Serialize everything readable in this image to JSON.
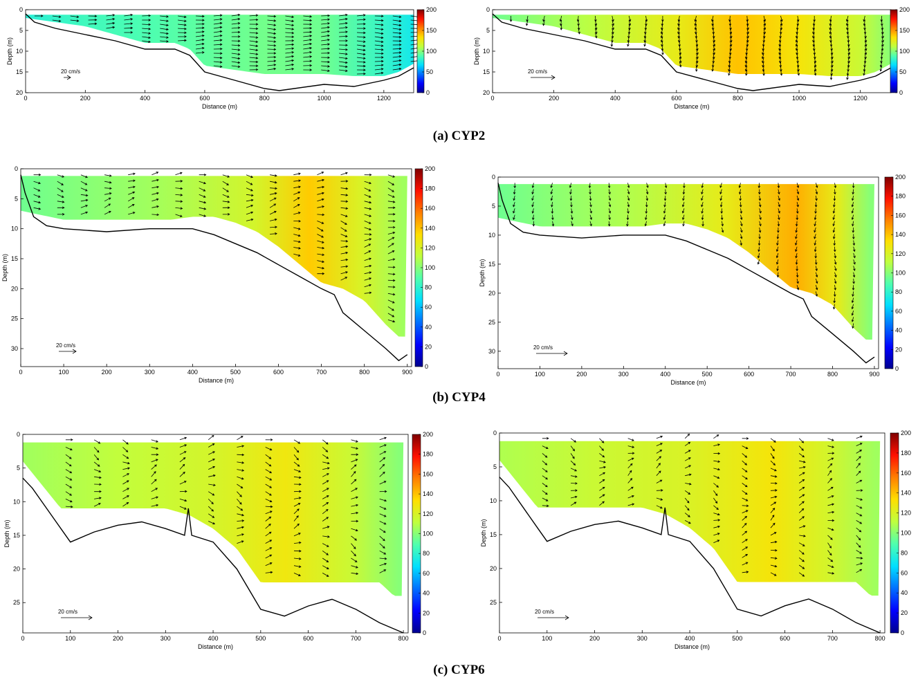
{
  "colorbar_colors": [
    "#00008f",
    "#0000ff",
    "#006fff",
    "#00dfff",
    "#4fffaf",
    "#bfff3f",
    "#ffdf00",
    "#ff7f00",
    "#ff1000",
    "#7f0000"
  ],
  "captions": {
    "a": "(a) CYP2",
    "b": "(b) CYP4",
    "c": "(c) CYP6"
  },
  "chart_data": [
    {
      "id": "cyp2-left",
      "type": "heatmap",
      "xlabel": "Distance (m)",
      "ylabel": "Depth (m)",
      "xlim": [
        0,
        1300
      ],
      "ylim": [
        20,
        0
      ],
      "y_reversed": true,
      "xticks": [
        0,
        200,
        400,
        600,
        800,
        1000,
        1200
      ],
      "yticks": [
        0,
        5,
        10,
        15,
        20
      ],
      "colorbar": {
        "range": [
          0,
          200
        ],
        "ticks": [
          0,
          50,
          100,
          150,
          200
        ]
      },
      "scale_label": "20 cm/s",
      "scale_cm_s": 20,
      "bed_x": [
        0,
        30,
        100,
        200,
        300,
        400,
        500,
        550,
        600,
        700,
        800,
        850,
        900,
        1000,
        1100,
        1200,
        1250,
        1300
      ],
      "bed_depth": [
        1,
        3,
        4.5,
        6,
        7.5,
        9.5,
        9.5,
        11,
        15,
        17,
        19,
        19.5,
        19,
        18,
        18.5,
        17,
        16,
        14
      ],
      "bottom_x": [
        0,
        100,
        200,
        300,
        400,
        500,
        550,
        600,
        700,
        800,
        900,
        1000,
        1100,
        1200,
        1250,
        1300
      ],
      "bottom_depth": [
        2,
        3,
        4,
        6,
        8,
        8,
        9.5,
        13.5,
        14.5,
        15.5,
        15.5,
        15.5,
        16,
        16,
        15,
        13
      ],
      "field": [
        {
          "x": 0,
          "v": 78
        },
        {
          "x": 200,
          "v": 85
        },
        {
          "x": 400,
          "v": 88
        },
        {
          "x": 600,
          "v": 92
        },
        {
          "x": 800,
          "v": 96
        },
        {
          "x": 1000,
          "v": 95
        },
        {
          "x": 1200,
          "v": 82
        },
        {
          "x": 1300,
          "v": 72
        }
      ],
      "arrows": {
        "style": "horizontal",
        "x_start": 30,
        "x_end": 1290,
        "x_step": 60,
        "z_top": 1.5,
        "z_step": 1,
        "length": 12,
        "wiggle": 0.15
      }
    },
    {
      "id": "cyp2-right",
      "type": "heatmap",
      "xlabel": "Distance (m)",
      "ylabel": "Depth (m)",
      "xlim": [
        0,
        1300
      ],
      "ylim": [
        20,
        0
      ],
      "y_reversed": true,
      "xticks": [
        0,
        200,
        400,
        600,
        800,
        1000,
        1200
      ],
      "yticks": [
        0,
        5,
        10,
        15,
        20
      ],
      "colorbar": {
        "range": [
          0,
          200
        ],
        "ticks": [
          0,
          50,
          100,
          150,
          200
        ]
      },
      "scale_label": "20 cm/s",
      "scale_cm_s": 20,
      "bed_x": [
        0,
        30,
        100,
        200,
        300,
        400,
        500,
        550,
        600,
        700,
        800,
        850,
        900,
        1000,
        1100,
        1200,
        1250,
        1300
      ],
      "bed_depth": [
        1,
        3,
        4.5,
        6,
        7.5,
        9.5,
        9.5,
        11,
        15,
        17,
        19,
        19.5,
        19,
        18,
        18.5,
        17,
        16,
        14
      ],
      "bottom_x": [
        0,
        100,
        200,
        300,
        400,
        500,
        550,
        600,
        700,
        800,
        900,
        1000,
        1100,
        1200,
        1250,
        1300
      ],
      "bottom_depth": [
        2,
        3,
        4,
        6,
        8,
        8,
        9.5,
        13.5,
        14.5,
        15.5,
        15.5,
        15.5,
        16,
        16,
        15,
        13
      ],
      "field": [
        {
          "x": 0,
          "v": 95
        },
        {
          "x": 300,
          "v": 110
        },
        {
          "x": 600,
          "v": 125
        },
        {
          "x": 800,
          "v": 140
        },
        {
          "x": 1000,
          "v": 130
        },
        {
          "x": 1200,
          "v": 115
        },
        {
          "x": 1300,
          "v": 100
        }
      ],
      "arrows": {
        "style": "vertical",
        "x_start": 60,
        "x_end": 1290,
        "x_step": 55,
        "z_top": 1.5,
        "z_step": 1,
        "length": 8,
        "wiggle": 0.25
      }
    },
    {
      "id": "cyp4-left",
      "type": "heatmap",
      "xlabel": "Distance (m)",
      "ylabel": "Depth (m)",
      "xlim": [
        0,
        910
      ],
      "ylim": [
        33,
        0
      ],
      "y_reversed": true,
      "xticks": [
        0,
        100,
        200,
        300,
        400,
        500,
        600,
        700,
        800,
        900
      ],
      "yticks": [
        0,
        5,
        10,
        15,
        20,
        25,
        30
      ],
      "colorbar": {
        "range": [
          0,
          200
        ],
        "ticks": [
          0,
          20,
          40,
          60,
          80,
          100,
          120,
          140,
          160,
          180,
          200
        ]
      },
      "scale_label": "20 cm/s",
      "scale_cm_s": 20,
      "bed_x": [
        0,
        10,
        30,
        60,
        100,
        200,
        300,
        400,
        450,
        500,
        550,
        600,
        650,
        700,
        730,
        750,
        800,
        850,
        880,
        900
      ],
      "bed_depth": [
        1,
        4,
        8,
        9.5,
        10,
        10.5,
        10,
        10,
        11,
        12.5,
        14,
        16,
        18,
        20,
        21,
        24,
        27,
        30,
        32,
        31
      ],
      "bottom_x": [
        0,
        100,
        200,
        300,
        350,
        400,
        450,
        500,
        550,
        600,
        650,
        700,
        750,
        800,
        850,
        880,
        900
      ],
      "bottom_depth": [
        7,
        8.5,
        8.5,
        8.5,
        8.5,
        8,
        8,
        9,
        10.5,
        13,
        16,
        19,
        20,
        22,
        26,
        28,
        28
      ],
      "field": [
        {
          "x": 0,
          "v": 95
        },
        {
          "x": 300,
          "v": 105
        },
        {
          "x": 550,
          "v": 118
        },
        {
          "x": 680,
          "v": 138
        },
        {
          "x": 800,
          "v": 120
        },
        {
          "x": 900,
          "v": 105
        }
      ],
      "arrows": {
        "style": "shear",
        "x_start": 30,
        "x_end": 890,
        "x_step": 55,
        "z_top": 1,
        "z_step": 1.1,
        "length": 10,
        "wiggle": 0.4
      }
    },
    {
      "id": "cyp4-right",
      "type": "heatmap",
      "xlabel": "Distance (m)",
      "ylabel": "Depth (m)",
      "xlim": [
        0,
        910
      ],
      "ylim": [
        33,
        0
      ],
      "y_reversed": true,
      "xticks": [
        0,
        100,
        200,
        300,
        400,
        500,
        600,
        700,
        800,
        900
      ],
      "yticks": [
        0,
        5,
        10,
        15,
        20,
        25,
        30
      ],
      "colorbar": {
        "range": [
          0,
          200
        ],
        "ticks": [
          0,
          20,
          40,
          60,
          80,
          100,
          120,
          140,
          160,
          180,
          200
        ]
      },
      "scale_label": "20 cm/s",
      "scale_cm_s": 20,
      "bed_x": [
        0,
        10,
        30,
        60,
        100,
        200,
        300,
        400,
        450,
        500,
        550,
        600,
        650,
        700,
        730,
        750,
        800,
        850,
        880,
        900
      ],
      "bed_depth": [
        1,
        4,
        8,
        9.5,
        10,
        10.5,
        10,
        10,
        11,
        12.5,
        14,
        16,
        18,
        20,
        21,
        24,
        27,
        30,
        32,
        31
      ],
      "bottom_x": [
        0,
        100,
        200,
        300,
        350,
        400,
        450,
        500,
        550,
        600,
        650,
        700,
        750,
        800,
        850,
        880,
        900
      ],
      "bottom_depth": [
        7,
        8.5,
        8.5,
        8.5,
        8.5,
        8,
        8,
        9,
        10.5,
        13,
        16,
        19,
        20,
        22,
        26,
        28,
        28
      ],
      "field": [
        {
          "x": 0,
          "v": 95
        },
        {
          "x": 300,
          "v": 108
        },
        {
          "x": 550,
          "v": 125
        },
        {
          "x": 720,
          "v": 145
        },
        {
          "x": 820,
          "v": 125
        },
        {
          "x": 900,
          "v": 100
        }
      ],
      "arrows": {
        "style": "vertical",
        "x_start": 40,
        "x_end": 890,
        "x_step": 45,
        "z_top": 1,
        "z_step": 1.1,
        "length": 7,
        "wiggle": 0.3
      }
    },
    {
      "id": "cyp6-left",
      "type": "heatmap",
      "xlabel": "Distance (m)",
      "ylabel": "Depth (m)",
      "xlim": [
        0,
        810
      ],
      "ylim": [
        29.5,
        0
      ],
      "y_reversed": true,
      "xticks": [
        0,
        100,
        200,
        300,
        400,
        500,
        600,
        700,
        800
      ],
      "yticks": [
        0,
        5,
        10,
        15,
        20,
        25
      ],
      "colorbar": {
        "range": [
          0,
          200
        ],
        "ticks": [
          0,
          20,
          40,
          60,
          80,
          100,
          120,
          140,
          160,
          180,
          200
        ]
      },
      "scale_label": "20 cm/s",
      "scale_cm_s": 20,
      "bed_x": [
        0,
        20,
        50,
        80,
        100,
        150,
        200,
        250,
        300,
        340,
        348,
        355,
        400,
        450,
        500,
        550,
        600,
        650,
        700,
        750,
        800
      ],
      "bed_depth": [
        6.5,
        8,
        11,
        14,
        16,
        14.5,
        13.5,
        13,
        14,
        15,
        11,
        15,
        16,
        20,
        26,
        27,
        25.5,
        24.5,
        26,
        28,
        29.5
      ],
      "bottom_x": [
        0,
        80,
        150,
        200,
        250,
        300,
        350,
        400,
        450,
        500,
        550,
        600,
        650,
        700,
        750,
        780,
        800
      ],
      "bottom_depth": [
        4,
        11,
        11,
        11,
        11,
        11,
        12,
        14,
        17,
        22,
        22,
        22,
        22,
        22,
        22,
        24,
        24
      ],
      "field": [
        {
          "x": 0,
          "v": 105
        },
        {
          "x": 200,
          "v": 112
        },
        {
          "x": 400,
          "v": 118
        },
        {
          "x": 560,
          "v": 128
        },
        {
          "x": 700,
          "v": 115
        },
        {
          "x": 800,
          "v": 100
        }
      ],
      "arrows": {
        "style": "shear",
        "x_start": 90,
        "x_end": 790,
        "x_step": 60,
        "z_top": 0.8,
        "z_step": 1.1,
        "length": 10,
        "wiggle": 0.7
      }
    },
    {
      "id": "cyp6-right",
      "type": "heatmap",
      "xlabel": "Distance (m)",
      "ylabel": "Depth (m)",
      "xlim": [
        0,
        810
      ],
      "ylim": [
        29.5,
        0
      ],
      "y_reversed": true,
      "xticks": [
        0,
        100,
        200,
        300,
        400,
        500,
        600,
        700,
        800
      ],
      "yticks": [
        0,
        5,
        10,
        15,
        20,
        25
      ],
      "colorbar": {
        "range": [
          0,
          200
        ],
        "ticks": [
          0,
          20,
          40,
          60,
          80,
          100,
          120,
          140,
          160,
          180,
          200
        ]
      },
      "scale_label": "20 cm/s",
      "scale_cm_s": 20,
      "bed_x": [
        0,
        20,
        50,
        80,
        100,
        150,
        200,
        250,
        300,
        340,
        348,
        355,
        400,
        450,
        500,
        550,
        600,
        650,
        700,
        750,
        800
      ],
      "bed_depth": [
        6.5,
        8,
        11,
        14,
        16,
        14.5,
        13.5,
        13,
        14,
        15,
        11,
        15,
        16,
        20,
        26,
        27,
        25.5,
        24.5,
        26,
        28,
        29.5
      ],
      "bottom_x": [
        0,
        80,
        150,
        200,
        250,
        300,
        350,
        400,
        450,
        500,
        550,
        600,
        650,
        700,
        750,
        780,
        800
      ],
      "bottom_depth": [
        4,
        11,
        11,
        11,
        11,
        11,
        12,
        14,
        17,
        22,
        22,
        22,
        22,
        22,
        22,
        24,
        24
      ],
      "field": [
        {
          "x": 0,
          "v": 108
        },
        {
          "x": 200,
          "v": 115
        },
        {
          "x": 400,
          "v": 120
        },
        {
          "x": 580,
          "v": 130
        },
        {
          "x": 700,
          "v": 118
        },
        {
          "x": 800,
          "v": 105
        }
      ],
      "arrows": {
        "style": "shear",
        "x_start": 90,
        "x_end": 790,
        "x_step": 60,
        "z_top": 0.8,
        "z_step": 1.1,
        "length": 9,
        "wiggle": 0.8
      }
    }
  ]
}
